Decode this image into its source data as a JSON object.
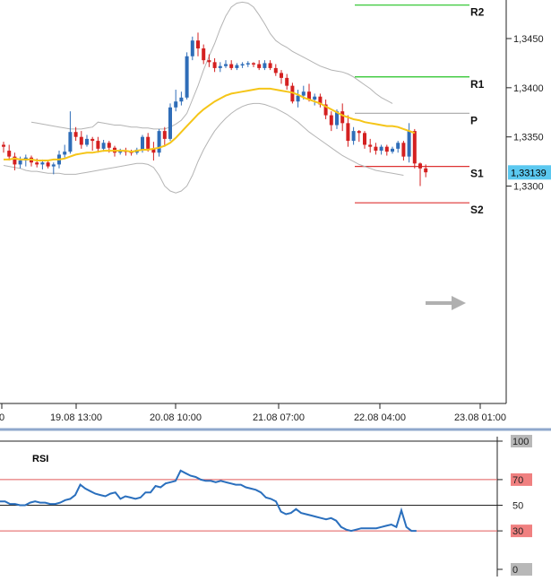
{
  "chart_data": [
    {
      "type": "candlestick",
      "yaxis": {
        "ticks": [
          "1,3450",
          "1,3400",
          "1,3350",
          "1,3300"
        ],
        "range": [
          1.327,
          1.349
        ]
      },
      "xaxis": {
        "ticks": [
          "0",
          "19.08 13:00",
          "20.08 10:00",
          "21.08 07:00",
          "22.08 04:00",
          "23.08 01:00"
        ]
      },
      "current_price": {
        "label": "1,33139",
        "value": 1.33139,
        "color": "#5bc8f0"
      },
      "pivot_levels": [
        {
          "name": "R2",
          "value": 1.3484,
          "color": "#22c322"
        },
        {
          "name": "R1",
          "value": 1.3411,
          "color": "#22c322"
        },
        {
          "name": "P",
          "value": 1.3374,
          "color": "#b0b0b0"
        },
        {
          "name": "S1",
          "value": 1.332,
          "color": "#dd3333"
        },
        {
          "name": "S2",
          "value": 1.3283,
          "color": "#dd3333"
        }
      ],
      "candles": [
        [
          1.3342,
          1.334,
          1.3345,
          1.3334
        ],
        [
          1.3336,
          1.333,
          1.3342,
          1.3326
        ],
        [
          1.333,
          1.3322,
          1.3334,
          1.3316
        ],
        [
          1.3322,
          1.3326,
          1.333,
          1.3318
        ],
        [
          1.3326,
          1.3329,
          1.3332,
          1.332
        ],
        [
          1.3329,
          1.3324,
          1.3331,
          1.332
        ],
        [
          1.3324,
          1.3322,
          1.3328,
          1.3319
        ],
        [
          1.3322,
          1.3324,
          1.3327,
          1.3317
        ],
        [
          1.3324,
          1.332,
          1.3326,
          1.3318
        ],
        [
          1.332,
          1.3322,
          1.3324,
          1.3312
        ],
        [
          1.3322,
          1.3332,
          1.3336,
          1.3318
        ],
        [
          1.3332,
          1.3335,
          1.3342,
          1.3329
        ],
        [
          1.3335,
          1.3355,
          1.3376,
          1.3333
        ],
        [
          1.3355,
          1.335,
          1.336,
          1.3346
        ],
        [
          1.335,
          1.3342,
          1.3356,
          1.3338
        ],
        [
          1.3342,
          1.3348,
          1.3352,
          1.334
        ],
        [
          1.3348,
          1.3346,
          1.335,
          1.3336
        ],
        [
          1.3346,
          1.3338,
          1.335,
          1.3334
        ],
        [
          1.3338,
          1.3344,
          1.3347,
          1.3335
        ],
        [
          1.3344,
          1.3339,
          1.3346,
          1.3334
        ],
        [
          1.3339,
          1.3334,
          1.3341,
          1.333
        ],
        [
          1.3334,
          1.3336,
          1.3338,
          1.3332
        ],
        [
          1.3336,
          1.3335,
          1.3339,
          1.3331
        ],
        [
          1.3335,
          1.3334,
          1.3337,
          1.3331
        ],
        [
          1.3334,
          1.3337,
          1.3339,
          1.3332
        ],
        [
          1.3337,
          1.335,
          1.3352,
          1.3334
        ],
        [
          1.335,
          1.3338,
          1.3354,
          1.3335
        ],
        [
          1.3338,
          1.3334,
          1.3345,
          1.3326
        ],
        [
          1.3334,
          1.3356,
          1.3358,
          1.333
        ],
        [
          1.3356,
          1.3348,
          1.336,
          1.334
        ],
        [
          1.3348,
          1.338,
          1.3384,
          1.3346
        ],
        [
          1.338,
          1.3386,
          1.3398,
          1.3376
        ],
        [
          1.3386,
          1.339,
          1.3396,
          1.3382
        ],
        [
          1.339,
          1.3432,
          1.3436,
          1.3388
        ],
        [
          1.3432,
          1.3448,
          1.3452,
          1.3428
        ],
        [
          1.3448,
          1.344,
          1.3456,
          1.3432
        ],
        [
          1.344,
          1.3428,
          1.3444,
          1.3424
        ],
        [
          1.3428,
          1.3426,
          1.3434,
          1.3421
        ],
        [
          1.3426,
          1.342,
          1.343,
          1.3416
        ],
        [
          1.342,
          1.3422,
          1.3426,
          1.3416
        ],
        [
          1.3422,
          1.3424,
          1.3428,
          1.342
        ],
        [
          1.3424,
          1.342,
          1.3428,
          1.3418
        ],
        [
          1.342,
          1.3423,
          1.3425,
          1.3418
        ],
        [
          1.3423,
          1.3424,
          1.3426,
          1.342
        ],
        [
          1.3424,
          1.3425,
          1.3427,
          1.3421
        ],
        [
          1.3425,
          1.3424,
          1.3426,
          1.3421
        ],
        [
          1.3424,
          1.342,
          1.3428,
          1.3418
        ],
        [
          1.342,
          1.3425,
          1.3428,
          1.3418
        ],
        [
          1.3425,
          1.342,
          1.3428,
          1.3418
        ],
        [
          1.342,
          1.3415,
          1.3424,
          1.3412
        ],
        [
          1.3415,
          1.341,
          1.3418,
          1.3404
        ],
        [
          1.341,
          1.3402,
          1.3414,
          1.3398
        ],
        [
          1.3402,
          1.3386,
          1.3405,
          1.3384
        ],
        [
          1.3386,
          1.3392,
          1.3398,
          1.338
        ],
        [
          1.3392,
          1.3396,
          1.3402,
          1.3388
        ],
        [
          1.3396,
          1.3388,
          1.3404,
          1.3386
        ],
        [
          1.3388,
          1.3391,
          1.3394,
          1.3382
        ],
        [
          1.3391,
          1.3383,
          1.3394,
          1.338
        ],
        [
          1.3383,
          1.3372,
          1.3388,
          1.3368
        ],
        [
          1.3372,
          1.3362,
          1.3376,
          1.3356
        ],
        [
          1.3362,
          1.3376,
          1.3378,
          1.3358
        ],
        [
          1.3376,
          1.3364,
          1.3384,
          1.3356
        ],
        [
          1.3364,
          1.3346,
          1.3372,
          1.334
        ],
        [
          1.3346,
          1.3356,
          1.336,
          1.3342
        ],
        [
          1.3356,
          1.3354,
          1.3357,
          1.3345
        ],
        [
          1.3354,
          1.3342,
          1.3356,
          1.3338
        ],
        [
          1.3342,
          1.334,
          1.3348,
          1.3334
        ],
        [
          1.334,
          1.3336,
          1.3344,
          1.3332
        ],
        [
          1.3336,
          1.334,
          1.3342,
          1.3332
        ],
        [
          1.334,
          1.3335,
          1.3342,
          1.3331
        ],
        [
          1.3335,
          1.3338,
          1.334,
          1.3333
        ],
        [
          1.3338,
          1.3344,
          1.3346,
          1.3334
        ],
        [
          1.3344,
          1.333,
          1.3346,
          1.3326
        ],
        [
          1.333,
          1.3356,
          1.3364,
          1.3324
        ],
        [
          1.3356,
          1.3323,
          1.3358,
          1.3318
        ],
        [
          1.3323,
          1.3318,
          1.3324,
          1.33
        ],
        [
          1.3318,
          1.3314,
          1.3322,
          1.3309
        ]
      ],
      "moving_average": [
        1.3327,
        1.3327,
        1.3328,
        1.3327,
        1.3327,
        1.3327,
        1.3326,
        1.3326,
        1.3326,
        1.3327,
        1.3327,
        1.3328,
        1.333,
        1.3332,
        1.3333,
        1.3334,
        1.3334,
        1.3335,
        1.3336,
        1.3336,
        1.3336,
        1.3336,
        1.3336,
        1.3335,
        1.3336,
        1.3337,
        1.3337,
        1.3338,
        1.3339,
        1.3341,
        1.3344,
        1.3349,
        1.3355,
        1.3361,
        1.3367,
        1.3373,
        1.3378,
        1.3382,
        1.3386,
        1.3389,
        1.3392,
        1.3394,
        1.3395,
        1.3396,
        1.3397,
        1.3398,
        1.3399,
        1.3399,
        1.3399,
        1.3398,
        1.3397,
        1.3396,
        1.3395,
        1.3393,
        1.339,
        1.3388,
        1.3386,
        1.3384,
        1.3381,
        1.3378,
        1.3375,
        1.3372,
        1.337,
        1.3368,
        1.3367,
        1.3365,
        1.3364,
        1.3363,
        1.3362,
        1.3361,
        1.3361,
        1.336,
        1.3358,
        1.3356,
        1.3354
      ],
      "bollinger_upper": [
        1.3365,
        1.3364,
        1.3363,
        1.3362,
        1.3361,
        1.336,
        1.3359,
        1.3358,
        1.3358,
        1.3358,
        1.3359,
        1.336,
        1.3365,
        1.3364,
        1.3363,
        1.3362,
        1.3362,
        1.3361,
        1.336,
        1.336,
        1.3359,
        1.3359,
        1.3358,
        1.3358,
        1.3358,
        1.336,
        1.3363,
        1.3367,
        1.3374,
        1.3388,
        1.3402,
        1.3418,
        1.3432,
        1.3445,
        1.346,
        1.3473,
        1.3482,
        1.3486,
        1.3487,
        1.3486,
        1.3482,
        1.3474,
        1.3465,
        1.3455,
        1.3448,
        1.3444,
        1.3441,
        1.3437,
        1.3434,
        1.3431,
        1.3428,
        1.3425,
        1.3422,
        1.342,
        1.3418,
        1.3417,
        1.3416,
        1.3414,
        1.3411,
        1.3407,
        1.3403,
        1.3399,
        1.3394,
        1.339,
        1.3387,
        1.3384
      ],
      "bollinger_lower": [
        1.3321,
        1.332,
        1.3319,
        1.3318,
        1.3316,
        1.3315,
        1.3315,
        1.3314,
        1.3313,
        1.3313,
        1.3313,
        1.3312,
        1.3312,
        1.3312,
        1.3313,
        1.3314,
        1.3315,
        1.3316,
        1.3317,
        1.3318,
        1.3319,
        1.332,
        1.3321,
        1.3322,
        1.3323,
        1.3323,
        1.3322,
        1.3319,
        1.3311,
        1.33,
        1.3295,
        1.3293,
        1.3295,
        1.33,
        1.3311,
        1.3325,
        1.3337,
        1.3347,
        1.3356,
        1.3363,
        1.3369,
        1.3374,
        1.3378,
        1.3381,
        1.3383,
        1.3384,
        1.3384,
        1.3383,
        1.3381,
        1.3379,
        1.3376,
        1.3373,
        1.3369,
        1.3365,
        1.336,
        1.3355,
        1.3351,
        1.3347,
        1.3343,
        1.3339,
        1.3335,
        1.3331,
        1.3328,
        1.3325,
        1.3322,
        1.332,
        1.3318,
        1.3316,
        1.3315,
        1.3314,
        1.3313,
        1.3312,
        1.3311
      ],
      "colors": {
        "up": "#2f6db8",
        "down": "#d42020",
        "ma": "#f5c518",
        "bands": "#b4b4b4"
      }
    },
    {
      "type": "line",
      "title": "RSI",
      "ylim": [
        0,
        100
      ],
      "ticks": [
        "100",
        "70",
        "50",
        "30",
        "0"
      ],
      "levels": [
        {
          "value": 70,
          "color": "#e05a5a"
        },
        {
          "value": 50,
          "color": "#222222"
        },
        {
          "value": 30,
          "color": "#e05a5a"
        }
      ],
      "series": [
        {
          "color": "#2a6fbd",
          "values": [
            53,
            53,
            51,
            51,
            50,
            50,
            52,
            53,
            52,
            52,
            51,
            51,
            52,
            54,
            55,
            58,
            66,
            63,
            61,
            59,
            58,
            57,
            59,
            60,
            55,
            57,
            56,
            55,
            56,
            60,
            60,
            65,
            64,
            67,
            68,
            69,
            77,
            75,
            73,
            72,
            70,
            69,
            69,
            68,
            69,
            68,
            67,
            66,
            66,
            64,
            63,
            62,
            60,
            56,
            55,
            53,
            45,
            43,
            44,
            47,
            44,
            43,
            42,
            41,
            40,
            39,
            40,
            38,
            33,
            31,
            30,
            31,
            32,
            32,
            32,
            32,
            33,
            34,
            35,
            33,
            46,
            33,
            30,
            30
          ]
        }
      ]
    }
  ]
}
